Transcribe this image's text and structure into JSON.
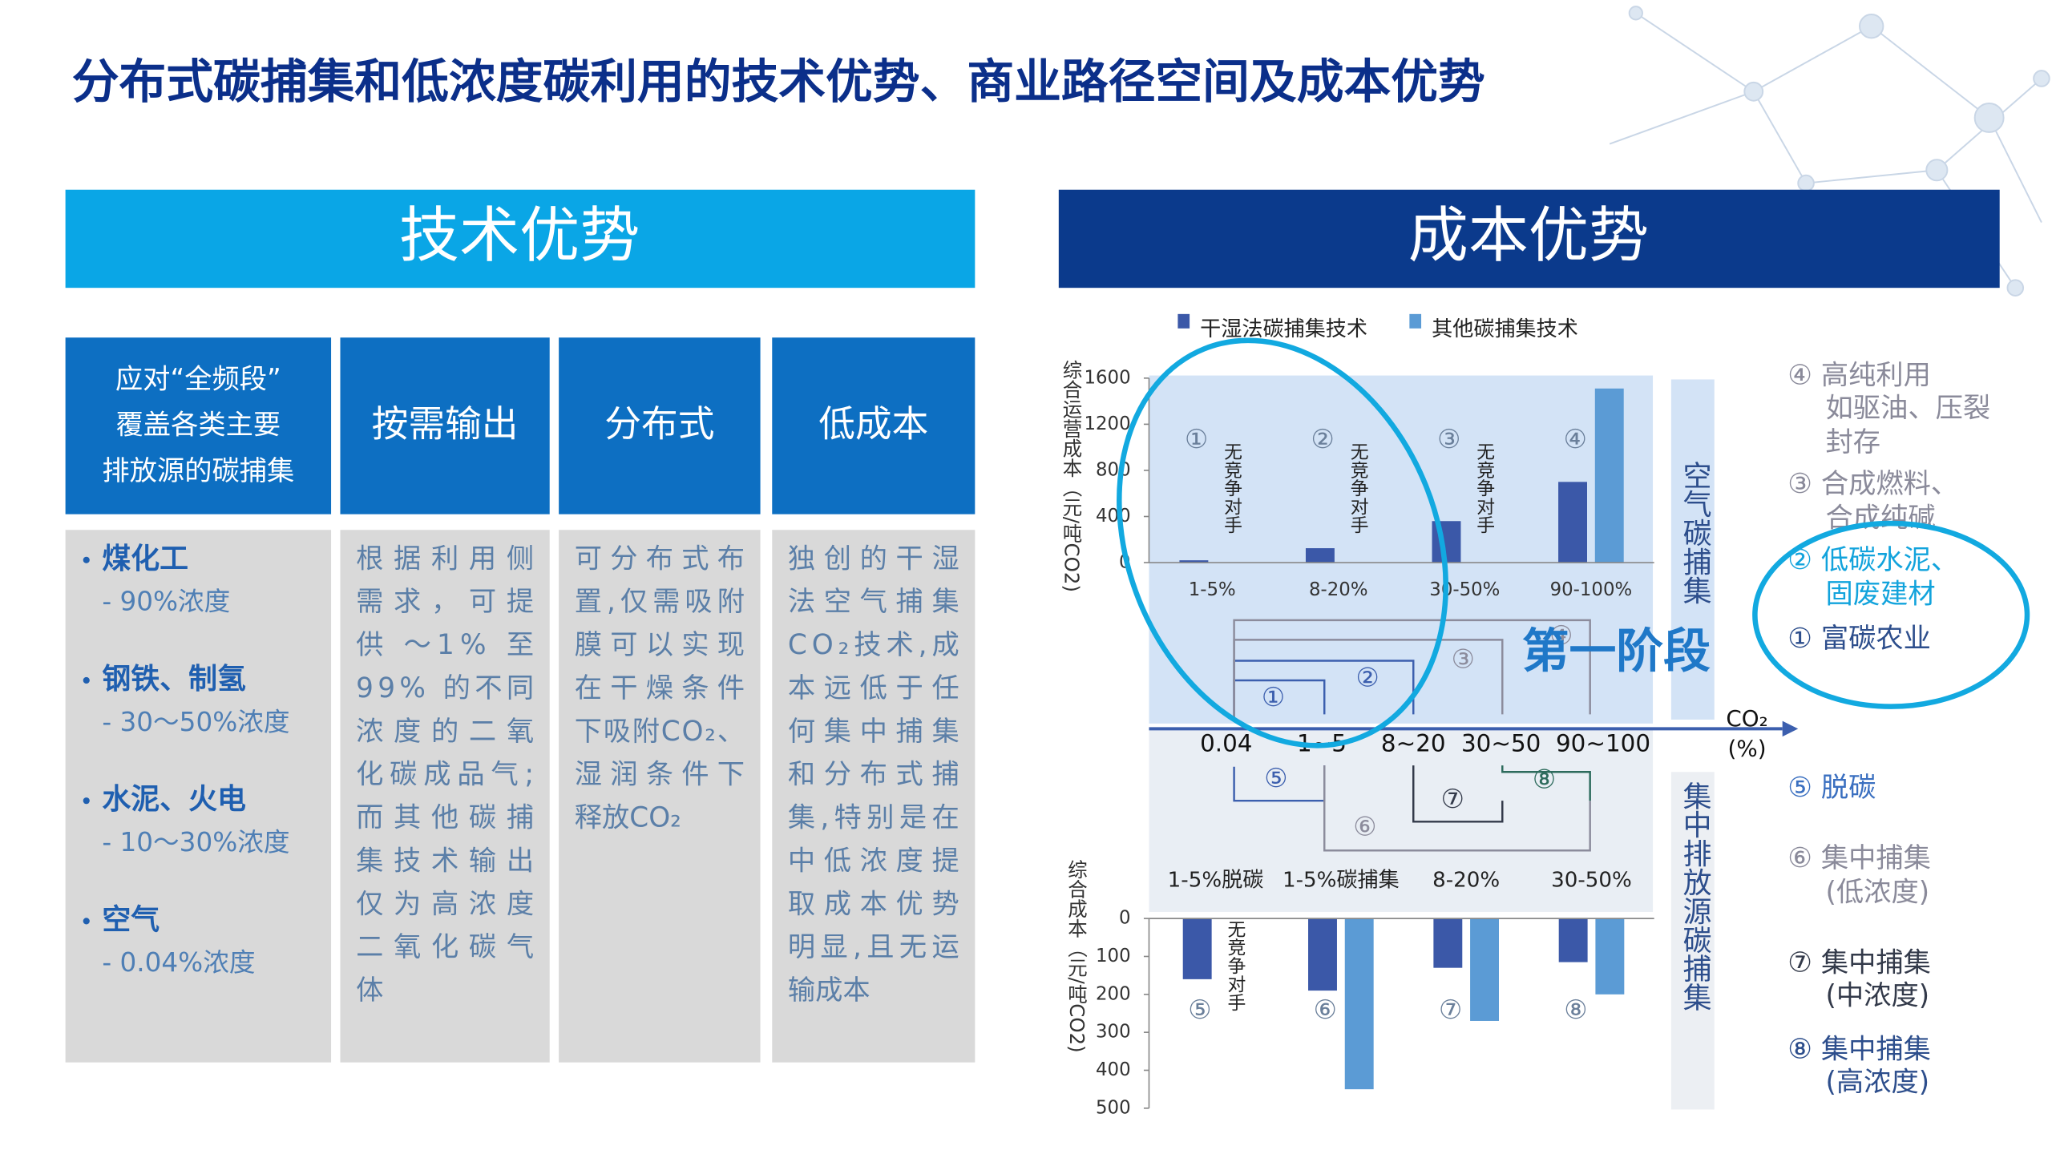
{
  "title": "分布式碳捕集和低浓度碳利用的技术优势、商业路径空间及成本优势",
  "left": {
    "header": "技术优势",
    "columns": [
      {
        "header": [
          "应对“全频段”",
          "覆盖各类主要",
          "排放源的碳捕集"
        ],
        "items": [
          {
            "head": "煤化工",
            "sub": "- 90%浓度"
          },
          {
            "head": "钢铁、制氢",
            "sub": "- 30～50%浓度"
          },
          {
            "head": "水泥、火电",
            "sub": "- 10～30%浓度"
          },
          {
            "head": "空气",
            "sub": "- 0.04%浓度"
          }
        ]
      },
      {
        "header": [
          "按需输出"
        ],
        "body": [
          "根据利用侧",
          "需求，可提",
          "供 ～1% 至",
          "99% 的不同",
          "浓度的二氧",
          "化碳成品气;",
          "而其他碳捕",
          "集技术输出",
          "仅为高浓度",
          "二氧化碳气",
          "体"
        ]
      },
      {
        "header": [
          "分布式"
        ],
        "body": [
          "可分布式布",
          "置,仅需吸附",
          "膜可以实现",
          "在干燥条件",
          "下吸附CO₂、",
          "湿润条件下",
          "释放CO₂"
        ]
      },
      {
        "header": [
          "低成本"
        ],
        "body": [
          "独创的干湿",
          "法空气捕集",
          "CO₂技术,成",
          "本远低于任",
          "何集中捕集",
          "和分布式捕",
          "集,特别是在",
          "中低浓度提",
          "取成本优势",
          "明显,且无运",
          "输成本"
        ]
      }
    ]
  },
  "right": {
    "header": "成本优势",
    "top_chart": {
      "type": "bar",
      "y_label": "综合运营成本（元/吨CO2)",
      "ylim": [
        0,
        1600
      ],
      "yticks": [
        0,
        400,
        800,
        1200,
        1600
      ],
      "categories": [
        "1-5%",
        "8-20%",
        "30-50%",
        "90-100%"
      ],
      "series": [
        {
          "name": "干湿法碳捕集技术",
          "color": "#3b58a8",
          "values": [
            20,
            125,
            360,
            700
          ]
        },
        {
          "name": "其他碳捕集技术",
          "color": "#5b9bd5",
          "values": [
            null,
            null,
            null,
            1510
          ]
        }
      ],
      "markers": [
        "①",
        "②",
        "③",
        "④"
      ],
      "annotations": [
        "无竞争对手",
        "无竞争对手",
        "无竞争对手",
        null
      ]
    },
    "bottom_chart": {
      "type": "bar",
      "y_label": "综合成本（元/吨CO2)",
      "ylim": [
        0,
        500
      ],
      "yticks": [
        0,
        100,
        200,
        300,
        400,
        500
      ],
      "y_direction": "down",
      "categories": [
        "1-5%脱碳",
        "1-5%碳捕集",
        "8-20%",
        "30-50%"
      ],
      "series": [
        {
          "color": "#3b58a8",
          "values": [
            160,
            190,
            130,
            115
          ]
        },
        {
          "color": "#5b9bd5",
          "values": [
            null,
            450,
            270,
            200
          ]
        }
      ],
      "markers": [
        "⑤",
        "⑥",
        "⑦",
        "⑧"
      ],
      "annotations": [
        "无竞争对手",
        null,
        null,
        null
      ]
    },
    "diagram": {
      "axis_labels": [
        "0.04",
        "1~5",
        "8~20",
        "30~50",
        "90~100"
      ],
      "axis_unit": [
        "CO₂",
        "(%)"
      ],
      "paths": [
        "①",
        "②",
        "③",
        "④",
        "⑤",
        "⑥",
        "⑦",
        "⑧"
      ],
      "stage": "第一阶段",
      "zones": [
        "空气碳捕集",
        "集中排放源碳捕集"
      ]
    },
    "list": [
      {
        "lines": [
          "④ 高纯利用",
          "如驱油、压裂",
          "封存"
        ],
        "color": "#8a8a9a"
      },
      {
        "lines": [
          "③ 合成燃料、",
          "合成纯碱"
        ],
        "color": "#8a8a9a"
      },
      {
        "lines": [
          "② 低碳水泥、",
          "固废建材"
        ],
        "color": "#12a3dc"
      },
      {
        "lines": [
          "① 富碳农业"
        ],
        "color": "#2d4e8c"
      },
      {
        "lines": [
          "⑤ 脱碳"
        ],
        "color": "#3a6fc0"
      },
      {
        "lines": [
          "⑥ 集中捕集",
          "(低浓度)"
        ],
        "color": "#8a8a9a"
      },
      {
        "lines": [
          "⑦ 集中捕集",
          "(中浓度)"
        ],
        "color": "#333a4a"
      },
      {
        "lines": [
          "⑧ 集中捕集",
          "(高浓度)"
        ],
        "color": "#2d4e8c"
      }
    ]
  }
}
